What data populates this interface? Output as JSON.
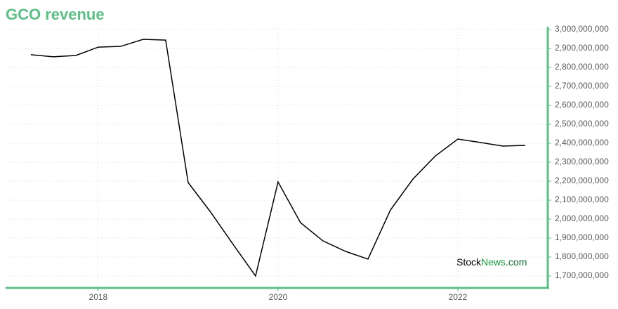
{
  "chart_data": {
    "type": "line",
    "title": "GCO revenue",
    "x": [
      2017.25,
      2017.5,
      2017.75,
      2018,
      2018.25,
      2018.5,
      2018.75,
      2019,
      2019.25,
      2019.5,
      2019.75,
      2020,
      2020.25,
      2020.5,
      2020.75,
      2021,
      2021.25,
      2021.5,
      2021.75,
      2022,
      2022.25,
      2022.5,
      2022.75
    ],
    "series": [
      {
        "name": "GCO revenue",
        "color": "#000000",
        "values": [
          2867000000,
          2856000000,
          2863000000,
          2907000000,
          2911000000,
          2948000000,
          2944000000,
          2193000000,
          2037000000,
          1867000000,
          1700000000,
          2196000000,
          1981000000,
          1885000000,
          1830000000,
          1789000000,
          2048000000,
          2211000000,
          2333000000,
          2422000000,
          2404000000,
          2385000000,
          2389000000
        ]
      }
    ],
    "xlim": [
      2016.97,
      2023.0
    ],
    "xticks": [
      2018,
      2020,
      2022
    ],
    "ylim": [
      1637000000,
      3000000000
    ],
    "yticks": [
      {
        "value": 1700000000,
        "label": "1,700,000,000"
      },
      {
        "value": 1800000000,
        "label": "1,800,000,000"
      },
      {
        "value": 1900000000,
        "label": "1,900,000,000"
      },
      {
        "value": 2000000000,
        "label": "2,000,000,000"
      },
      {
        "value": 2100000000,
        "label": "2,100,000,000"
      },
      {
        "value": 2200000000,
        "label": "2,200,000,000"
      },
      {
        "value": 2300000000,
        "label": "2,300,000,000"
      },
      {
        "value": 2400000000,
        "label": "2,400,000,000"
      },
      {
        "value": 2500000000,
        "label": "2,500,000,000"
      },
      {
        "value": 2600000000,
        "label": "2,600,000,000"
      },
      {
        "value": 2700000000,
        "label": "2,700,000,000"
      },
      {
        "value": 2800000000,
        "label": "2,800,000,000"
      },
      {
        "value": 2900000000,
        "label": "2,900,000,000"
      },
      {
        "value": 3000000000,
        "label": "3,000,000,000"
      }
    ],
    "grid": true,
    "axis_color": "#5cbf85",
    "watermark": [
      "Stock",
      "News",
      ".com"
    ]
  }
}
